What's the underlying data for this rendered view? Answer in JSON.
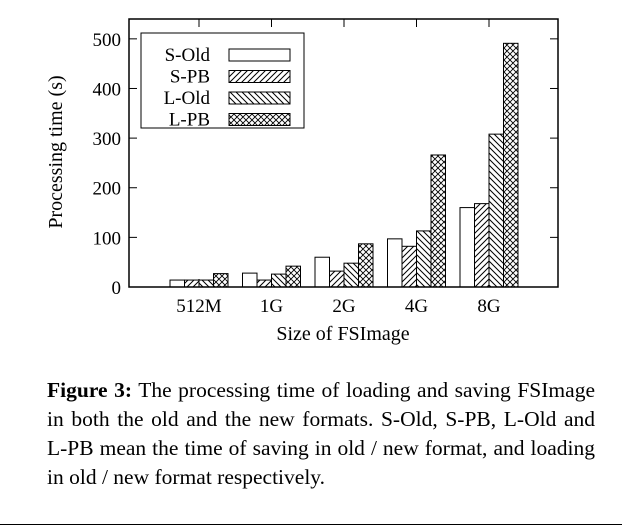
{
  "chart_data": {
    "type": "bar",
    "title": "",
    "xlabel": "Size of FSImage",
    "ylabel": "Processing time (s)",
    "ylim": [
      0,
      540
    ],
    "yticks": [
      0,
      100,
      200,
      300,
      400,
      500
    ],
    "categories": [
      "512M",
      "1G",
      "2G",
      "4G",
      "8G"
    ],
    "legend_position": "top-left",
    "grid": false,
    "series": [
      {
        "name": "S-Old",
        "pattern": "empty",
        "values": [
          14,
          28,
          60,
          97,
          160
        ]
      },
      {
        "name": "S-PB",
        "pattern": "diagonal-up",
        "values": [
          14,
          14,
          32,
          82,
          168
        ]
      },
      {
        "name": "L-Old",
        "pattern": "diagonal-down",
        "values": [
          14,
          26,
          48,
          113,
          308
        ]
      },
      {
        "name": "L-PB",
        "pattern": "crosshatch",
        "values": [
          27,
          42,
          87,
          266,
          491
        ]
      }
    ]
  },
  "caption": {
    "label": "Figure 3:",
    "text": "The processing time of loading and saving FSImage in both the old and the new formats. S-Old, S-PB, L-Old and L-PB mean the time of saving in old / new format, and loading in old / new format respectively."
  }
}
